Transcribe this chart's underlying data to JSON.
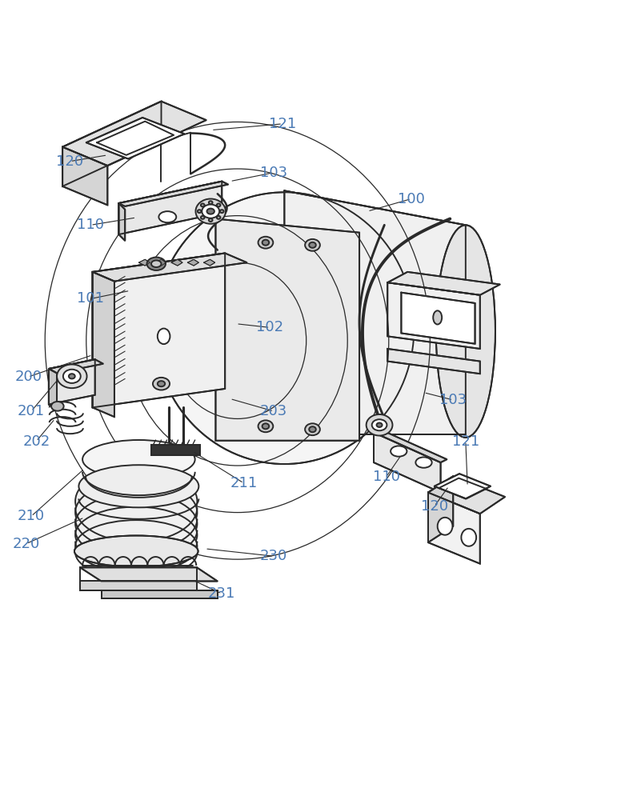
{
  "fig_width": 7.81,
  "fig_height": 10.0,
  "dpi": 100,
  "bg_color": "#ffffff",
  "line_color": "#2a2a2a",
  "label_color": "#4a7ab5",
  "label_fontsize": 13,
  "line_width": 1.4
}
